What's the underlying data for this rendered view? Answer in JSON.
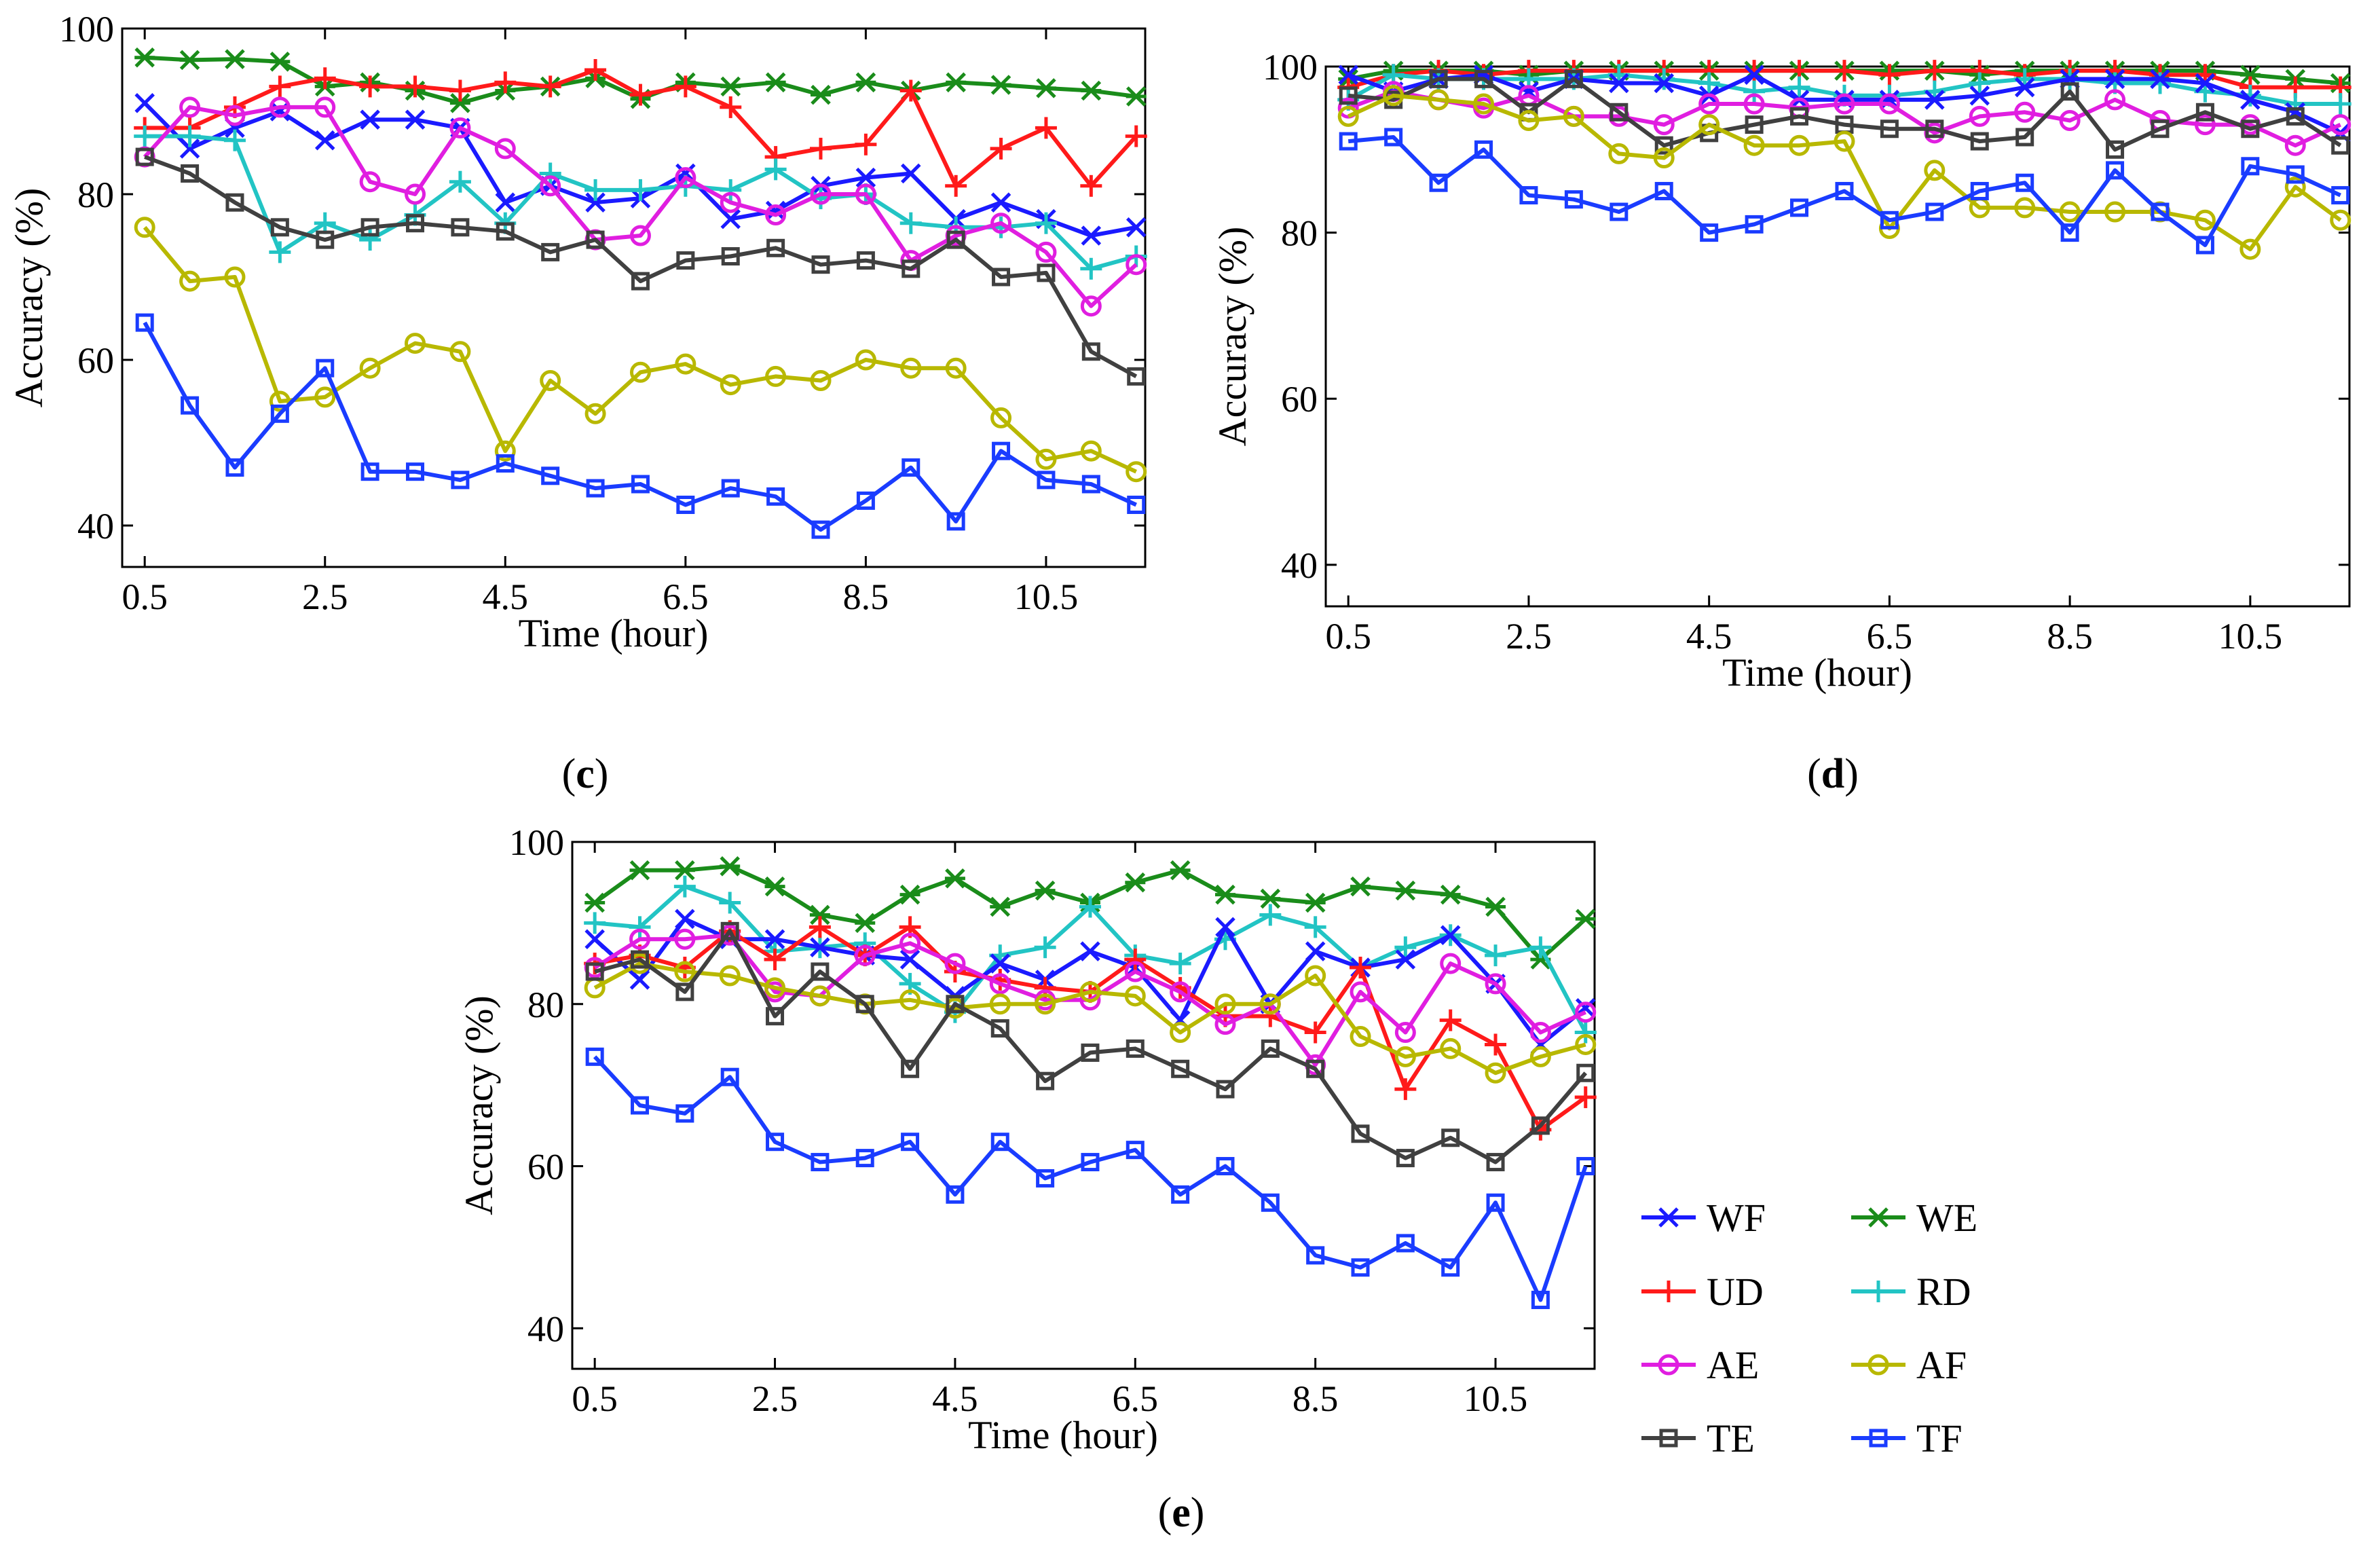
{
  "figure": {
    "legend_entries": [
      {
        "name": "WF",
        "color": "#1a1aff",
        "marker": "x"
      },
      {
        "name": "WE",
        "color": "#1a8c1a",
        "marker": "star"
      },
      {
        "name": "UD",
        "color": "#ff1a1a",
        "marker": "plus"
      },
      {
        "name": "RD",
        "color": "#22c4c4",
        "marker": "plus"
      },
      {
        "name": "AE",
        "color": "#e01ee0",
        "marker": "circle"
      },
      {
        "name": "AF",
        "color": "#b8b800",
        "marker": "circle"
      },
      {
        "name": "TE",
        "color": "#404040",
        "marker": "square"
      },
      {
        "name": "TF",
        "color": "#1a3cff",
        "marker": "square"
      }
    ]
  },
  "chart_data": [
    {
      "type": "line",
      "panel": "c",
      "label_open": "(",
      "label_letter": "c",
      "label_close": ")",
      "xlabel": "Time (hour)",
      "ylabel": "Accuracy (%)",
      "xlim": [
        0.25,
        11.6
      ],
      "ylim": [
        35,
        100
      ],
      "xticks": [
        0.5,
        2.5,
        4.5,
        6.5,
        8.5,
        10.5
      ],
      "xtick_labels": [
        "0.5",
        "2.5",
        "4.5",
        "6.5",
        "8.5",
        "10.5"
      ],
      "yticks": [
        40,
        60,
        80,
        100
      ],
      "ytick_labels": [
        "40",
        "60",
        "80",
        "100"
      ],
      "x": [
        0.5,
        1,
        1.5,
        2,
        2.5,
        3,
        3.5,
        4,
        4.5,
        5,
        5.5,
        6,
        6.5,
        7,
        7.5,
        8,
        8.5,
        9,
        9.5,
        10,
        10.5,
        11,
        11.5
      ],
      "series": [
        {
          "name": "WE",
          "values": [
            96.5,
            96.2,
            96.3,
            96,
            93,
            93.5,
            92.5,
            91,
            92.5,
            93,
            94,
            91.5,
            93.5,
            93,
            93.5,
            92,
            93.5,
            92.5,
            93.5,
            93.2,
            92.8,
            92.5,
            91.8
          ]
        },
        {
          "name": "UD",
          "values": [
            88,
            88,
            90.5,
            93,
            94,
            93,
            93,
            92.5,
            93.5,
            93,
            95,
            92,
            93,
            90.5,
            84.5,
            85.5,
            86,
            92.5,
            81,
            85.5,
            88,
            81,
            87
          ]
        },
        {
          "name": "WF",
          "values": [
            91,
            85.5,
            88,
            90,
            86.5,
            89,
            89,
            88,
            79,
            81,
            79,
            79.5,
            82.5,
            77,
            78,
            81,
            82,
            82.5,
            77,
            79,
            77,
            75,
            76
          ]
        },
        {
          "name": "RD",
          "values": [
            87,
            87,
            86.5,
            73,
            76.5,
            74.5,
            77.5,
            81.5,
            76.5,
            82.5,
            80.5,
            80.5,
            81,
            80.5,
            83,
            79.5,
            80,
            76.5,
            76,
            76,
            76.5,
            71,
            72.5
          ]
        },
        {
          "name": "AE",
          "values": [
            84.5,
            90.5,
            89.5,
            90.5,
            90.5,
            81.5,
            80,
            88,
            85.5,
            81,
            74.5,
            75,
            82,
            79,
            77.5,
            80,
            80,
            72,
            75,
            76.5,
            73,
            66.5,
            71.5
          ]
        },
        {
          "name": "TE",
          "values": [
            84.5,
            82.5,
            79,
            76,
            74.5,
            76,
            76.5,
            76,
            75.5,
            73,
            74.5,
            69.5,
            72,
            72.5,
            73.5,
            71.5,
            72,
            71,
            74.5,
            70,
            70.5,
            61,
            58
          ]
        },
        {
          "name": "AF",
          "values": [
            76,
            69.5,
            70,
            55,
            55.5,
            59,
            62,
            61,
            49,
            57.5,
            53.5,
            58.5,
            59.5,
            57,
            58,
            57.5,
            60,
            59,
            59,
            53,
            48,
            49,
            46.5
          ]
        },
        {
          "name": "TF",
          "values": [
            64.5,
            54.5,
            47,
            53.5,
            59,
            46.5,
            46.5,
            45.5,
            47.5,
            46,
            44.5,
            45,
            42.5,
            44.5,
            43.5,
            39.5,
            43,
            47,
            40.5,
            49,
            45.5,
            45,
            42.5
          ]
        }
      ]
    },
    {
      "type": "line",
      "panel": "d",
      "label_open": "(",
      "label_letter": "d",
      "label_close": ")",
      "xlabel": "Time (hour)",
      "ylabel": "Accuracy (%)",
      "xlim": [
        0.25,
        11.6
      ],
      "ylim": [
        35,
        100
      ],
      "xticks": [
        0.5,
        2.5,
        4.5,
        6.5,
        8.5,
        10.5
      ],
      "xtick_labels": [
        "0.5",
        "2.5",
        "4.5",
        "6.5",
        "8.5",
        "10.5"
      ],
      "yticks": [
        40,
        60,
        80,
        100
      ],
      "ytick_labels": [
        "40",
        "60",
        "80",
        "100"
      ],
      "x": [
        0.5,
        1,
        1.5,
        2,
        2.5,
        3,
        3.5,
        4,
        4.5,
        5,
        5.5,
        6,
        6.5,
        7,
        7.5,
        8,
        8.5,
        9,
        9.5,
        10,
        10.5,
        11,
        11.5
      ],
      "series": [
        {
          "name": "WE",
          "values": [
            98.5,
            99.5,
            99.5,
            99.5,
            99,
            99.5,
            99.5,
            99.5,
            99.5,
            99.5,
            99.5,
            99.5,
            99.5,
            99.5,
            99,
            99.5,
            99.5,
            99.5,
            99.5,
            99.5,
            99,
            98.5,
            98
          ]
        },
        {
          "name": "UD",
          "values": [
            97.5,
            99,
            99.5,
            99,
            99.5,
            99.5,
            99.5,
            99.5,
            99.5,
            99.5,
            99.5,
            99.5,
            99,
            99.5,
            99.5,
            99,
            99.5,
            99.5,
            99,
            99,
            97.5,
            97.5,
            97.5
          ]
        },
        {
          "name": "RD",
          "values": [
            96,
            99,
            98.5,
            98.5,
            98.5,
            98.5,
            99,
            98.5,
            98,
            97,
            97.5,
            96.5,
            96.5,
            97,
            98,
            98.5,
            98.5,
            98,
            98,
            97,
            96.5,
            95.5,
            95.5
          ]
        },
        {
          "name": "WF",
          "values": [
            99,
            97,
            98.5,
            99,
            97,
            98.5,
            98,
            98,
            96.5,
            99,
            96,
            96,
            96,
            96,
            96.5,
            97.5,
            98.5,
            98.5,
            98.5,
            98,
            96,
            94.5,
            92
          ]
        },
        {
          "name": "AE",
          "values": [
            95,
            97,
            96,
            95,
            96.5,
            94,
            94,
            93,
            95.5,
            95.5,
            95,
            95.5,
            95.5,
            92,
            94,
            94.5,
            93.5,
            96,
            93.5,
            93,
            93,
            90.5,
            93
          ]
        },
        {
          "name": "TE",
          "values": [
            96.5,
            96,
            98.5,
            98.5,
            94.5,
            98.5,
            94.5,
            90.5,
            92,
            93,
            94,
            93,
            92.5,
            92.5,
            91,
            91.5,
            97,
            90,
            92.5,
            94.5,
            92.5,
            94,
            90.5
          ]
        },
        {
          "name": "AF",
          "values": [
            94,
            96.5,
            96,
            95.5,
            93.5,
            94,
            89.5,
            89,
            93,
            90.5,
            90.5,
            91,
            80.5,
            87.5,
            83,
            83,
            82.5,
            82.5,
            82.5,
            81.5,
            78,
            85.5,
            81.5
          ]
        },
        {
          "name": "TF",
          "values": [
            91,
            91.5,
            86,
            90,
            84.5,
            84,
            82.5,
            85,
            80,
            81,
            83,
            85,
            81.5,
            82.5,
            85,
            86,
            80,
            87.5,
            82.5,
            78.5,
            88,
            87,
            84.5
          ]
        }
      ]
    },
    {
      "type": "line",
      "panel": "e",
      "label_open": "(",
      "label_letter": "e",
      "label_close": ")",
      "xlabel": "Time (hour)",
      "ylabel": "Accuracy (%)",
      "xlim": [
        0.25,
        11.6
      ],
      "ylim": [
        35,
        100
      ],
      "xticks": [
        0.5,
        2.5,
        4.5,
        6.5,
        8.5,
        10.5
      ],
      "xtick_labels": [
        "0.5",
        "2.5",
        "4.5",
        "6.5",
        "8.5",
        "10.5"
      ],
      "yticks": [
        40,
        60,
        80,
        100
      ],
      "ytick_labels": [
        "40",
        "60",
        "80",
        "100"
      ],
      "x": [
        0.5,
        1,
        1.5,
        2,
        2.5,
        3,
        3.5,
        4,
        4.5,
        5,
        5.5,
        6,
        6.5,
        7,
        7.5,
        8,
        8.5,
        9,
        9.5,
        10,
        10.5,
        11,
        11.5
      ],
      "series": [
        {
          "name": "WE",
          "values": [
            92.5,
            96.5,
            96.5,
            97,
            94.5,
            91,
            90,
            93.5,
            95.5,
            92,
            94,
            92.5,
            95,
            96.5,
            93.5,
            93,
            92.5,
            94.5,
            94,
            93.5,
            92,
            85.5,
            90.5
          ]
        },
        {
          "name": "RD",
          "values": [
            90,
            89.5,
            94.5,
            92.5,
            86.5,
            87,
            87.5,
            82.5,
            79,
            86,
            87,
            92,
            86,
            85,
            88,
            91,
            89.5,
            84.5,
            87,
            88.5,
            86,
            87,
            76.5
          ]
        },
        {
          "name": "WF",
          "values": [
            88,
            83,
            90.5,
            88,
            88,
            87,
            86,
            85.5,
            81,
            85,
            83,
            86.5,
            84.5,
            78,
            89.5,
            80,
            86.5,
            84.5,
            85.5,
            88.5,
            82.5,
            75,
            79.5
          ]
        },
        {
          "name": "UD",
          "values": [
            85,
            86,
            84.5,
            89,
            85.5,
            89.5,
            86,
            89.5,
            84,
            83,
            82,
            81.5,
            85.5,
            82,
            78.5,
            78.5,
            76.5,
            84.5,
            69.5,
            78,
            75,
            64.5,
            68.5
          ]
        },
        {
          "name": "AE",
          "values": [
            84.5,
            88,
            88,
            88.5,
            81.5,
            81,
            86,
            87.5,
            85,
            82.5,
            80.5,
            80.5,
            84,
            81.5,
            77.5,
            80,
            72.5,
            81.5,
            76.5,
            85,
            82.5,
            76.5,
            79
          ]
        },
        {
          "name": "AF",
          "values": [
            82,
            85,
            84,
            83.5,
            82,
            81,
            80,
            80.5,
            79.5,
            80,
            80,
            81.5,
            81,
            76.5,
            80,
            80,
            83.5,
            76,
            73.5,
            74.5,
            71.5,
            73.5,
            75
          ]
        },
        {
          "name": "TE",
          "values": [
            84,
            85.5,
            81.5,
            89,
            78.5,
            84,
            80,
            72,
            80,
            77,
            70.5,
            74,
            74.5,
            72,
            69.5,
            74.5,
            72,
            64,
            61,
            63.5,
            60.5,
            65,
            71.5
          ]
        },
        {
          "name": "TF",
          "values": [
            73.5,
            67.5,
            66.5,
            71,
            63,
            60.5,
            61,
            63,
            56.5,
            63,
            58.5,
            60.5,
            62,
            56.5,
            60,
            55.5,
            49,
            47.5,
            50.5,
            47.5,
            55.5,
            43.5,
            60
          ]
        }
      ]
    }
  ]
}
